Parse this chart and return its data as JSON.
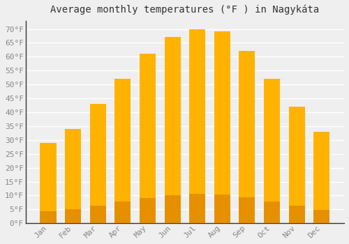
{
  "title": "Average monthly temperatures (°F ) in Nagykáta",
  "months": [
    "Jan",
    "Feb",
    "Mar",
    "Apr",
    "May",
    "Jun",
    "Jul",
    "Aug",
    "Sep",
    "Oct",
    "Nov",
    "Dec"
  ],
  "values": [
    29,
    34,
    43,
    52,
    61,
    67,
    70,
    69,
    62,
    52,
    42,
    33
  ],
  "bar_color_top": "#FFB300",
  "bar_color_bottom": "#FFA000",
  "background_color": "#EFEFEF",
  "plot_bg_color": "#EFEFEF",
  "grid_color": "#FFFFFF",
  "text_color": "#888888",
  "title_color": "#333333",
  "ylim": [
    0,
    73
  ],
  "yticks": [
    0,
    5,
    10,
    15,
    20,
    25,
    30,
    35,
    40,
    45,
    50,
    55,
    60,
    65,
    70
  ],
  "title_fontsize": 10,
  "tick_fontsize": 8,
  "bar_width": 0.65
}
